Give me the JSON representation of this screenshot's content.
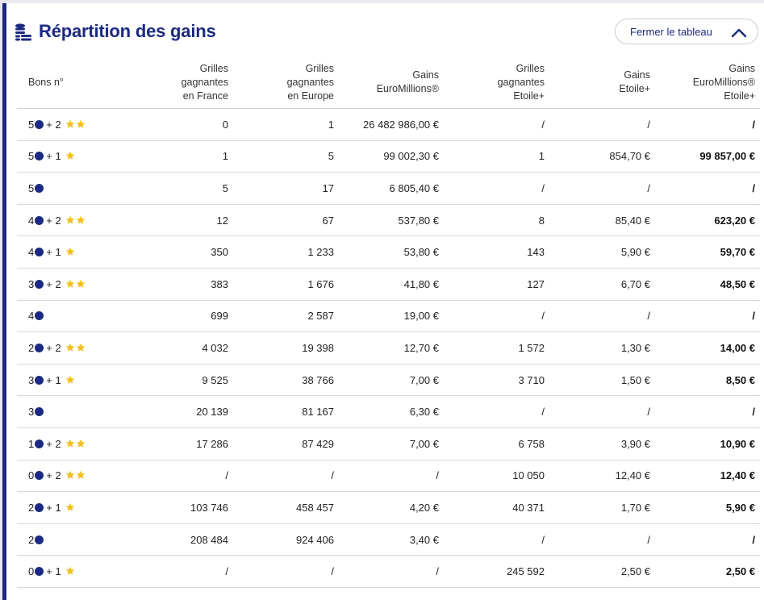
{
  "header": {
    "title": "Répartition des gains",
    "title_icon": "coins-stack-icon",
    "close_button_label": "Fermer le tableau",
    "close_icon": "chevron-up-icon"
  },
  "table": {
    "columns": [
      [
        "Bons n°"
      ],
      [
        "Grilles",
        "gagnantes",
        "en France"
      ],
      [
        "Grilles",
        "gagnantes",
        "en Europe"
      ],
      [
        "Gains",
        "EuroMillions®"
      ],
      [
        "Grilles",
        "gagnantes",
        "Etoile+"
      ],
      [
        "Gains",
        "Etoile+"
      ],
      [
        "Gains",
        "EuroMillions®",
        "Etoile+"
      ]
    ],
    "rows": [
      {
        "numbers": "5",
        "stars_label": "+ 2",
        "stars": 2,
        "france": "0",
        "europe": "1",
        "gains_em": "26 482 986,00 €",
        "grilles_etoile": "/",
        "gains_etoile": "/",
        "gains_total": "/"
      },
      {
        "numbers": "5",
        "stars_label": "+ 1",
        "stars": 1,
        "france": "1",
        "europe": "5",
        "gains_em": "99 002,30 €",
        "grilles_etoile": "1",
        "gains_etoile": "854,70 €",
        "gains_total": "99 857,00 €"
      },
      {
        "numbers": "5",
        "stars_label": "",
        "stars": 0,
        "france": "5",
        "europe": "17",
        "gains_em": "6 805,40 €",
        "grilles_etoile": "/",
        "gains_etoile": "/",
        "gains_total": "/"
      },
      {
        "numbers": "4",
        "stars_label": "+ 2",
        "stars": 2,
        "france": "12",
        "europe": "67",
        "gains_em": "537,80 €",
        "grilles_etoile": "8",
        "gains_etoile": "85,40 €",
        "gains_total": "623,20 €"
      },
      {
        "numbers": "4",
        "stars_label": "+ 1",
        "stars": 1,
        "france": "350",
        "europe": "1 233",
        "gains_em": "53,80 €",
        "grilles_etoile": "143",
        "gains_etoile": "5,90 €",
        "gains_total": "59,70 €"
      },
      {
        "numbers": "3",
        "stars_label": "+ 2",
        "stars": 2,
        "france": "383",
        "europe": "1 676",
        "gains_em": "41,80 €",
        "grilles_etoile": "127",
        "gains_etoile": "6,70 €",
        "gains_total": "48,50 €"
      },
      {
        "numbers": "4",
        "stars_label": "",
        "stars": 0,
        "france": "699",
        "europe": "2 587",
        "gains_em": "19,00 €",
        "grilles_etoile": "/",
        "gains_etoile": "/",
        "gains_total": "/"
      },
      {
        "numbers": "2",
        "stars_label": "+ 2",
        "stars": 2,
        "france": "4 032",
        "europe": "19 398",
        "gains_em": "12,70 €",
        "grilles_etoile": "1 572",
        "gains_etoile": "1,30 €",
        "gains_total": "14,00 €"
      },
      {
        "numbers": "3",
        "stars_label": "+ 1",
        "stars": 1,
        "france": "9 525",
        "europe": "38 766",
        "gains_em": "7,00 €",
        "grilles_etoile": "3 710",
        "gains_etoile": "1,50 €",
        "gains_total": "8,50 €"
      },
      {
        "numbers": "3",
        "stars_label": "",
        "stars": 0,
        "france": "20 139",
        "europe": "81 167",
        "gains_em": "6,30 €",
        "grilles_etoile": "/",
        "gains_etoile": "/",
        "gains_total": "/"
      },
      {
        "numbers": "1",
        "stars_label": "+ 2",
        "stars": 2,
        "france": "17 286",
        "europe": "87 429",
        "gains_em": "7,00 €",
        "grilles_etoile": "6 758",
        "gains_etoile": "3,90 €",
        "gains_total": "10,90 €"
      },
      {
        "numbers": "0",
        "stars_label": "+ 2",
        "stars": 2,
        "france": "/",
        "europe": "/",
        "gains_em": "/",
        "grilles_etoile": "10 050",
        "gains_etoile": "12,40 €",
        "gains_total": "12,40 €"
      },
      {
        "numbers": "2",
        "stars_label": "+ 1",
        "stars": 1,
        "france": "103 746",
        "europe": "458 457",
        "gains_em": "4,20 €",
        "grilles_etoile": "40 371",
        "gains_etoile": "1,70 €",
        "gains_total": "5,90 €"
      },
      {
        "numbers": "2",
        "stars_label": "",
        "stars": 0,
        "france": "208 484",
        "europe": "924 406",
        "gains_em": "3,40 €",
        "grilles_etoile": "/",
        "gains_etoile": "/",
        "gains_total": "/"
      },
      {
        "numbers": "0",
        "stars_label": "+ 1",
        "stars": 1,
        "france": "/",
        "europe": "/",
        "gains_em": "/",
        "grilles_etoile": "245 592",
        "gains_etoile": "2,50 €",
        "gains_total": "2,50 €"
      }
    ]
  },
  "colors": {
    "brand_blue": "#1b2a80",
    "star_yellow": "#f2c21b",
    "divider": "#d6d8df"
  }
}
